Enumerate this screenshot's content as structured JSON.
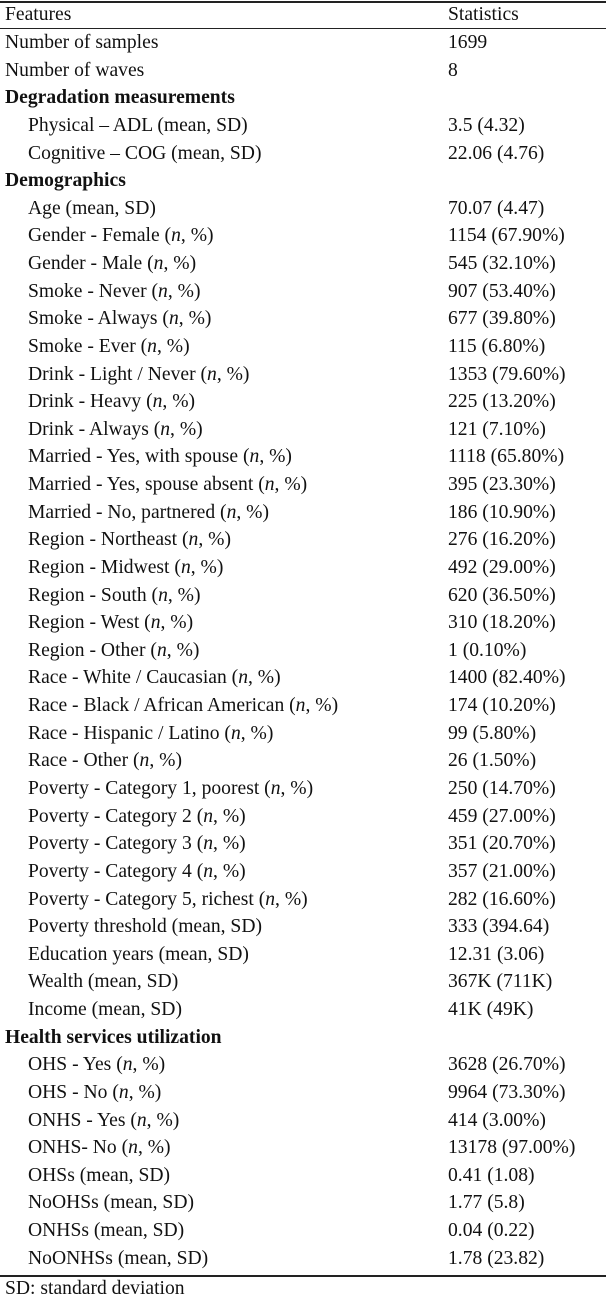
{
  "header": {
    "features": "Features",
    "statistics": "Statistics"
  },
  "rows": [
    {
      "type": "plain",
      "label": "Number of samples",
      "stat": "1699"
    },
    {
      "type": "plain",
      "label": "Number of waves",
      "stat": "8"
    },
    {
      "type": "section",
      "label": "Degradation measurements",
      "stat": ""
    },
    {
      "type": "sub",
      "label": "Physical – ADL (mean, SD)",
      "stat": "3.5 (4.32)"
    },
    {
      "type": "sub",
      "label": "Cognitive – COG (mean, SD)",
      "stat": "22.06 (4.76)"
    },
    {
      "type": "section",
      "label": "Demographics",
      "stat": ""
    },
    {
      "type": "sub",
      "label": "Age (mean, SD)",
      "stat": "70.07 (4.47)"
    },
    {
      "type": "sub",
      "label": "Gender - Female (n, %)",
      "stat": "1154 (67.90%)"
    },
    {
      "type": "sub",
      "label": "Gender - Male (n, %)",
      "stat": "545 (32.10%)"
    },
    {
      "type": "sub",
      "label": "Smoke - Never (n, %)",
      "stat": "907 (53.40%)"
    },
    {
      "type": "sub",
      "label": "Smoke - Always (n, %)",
      "stat": "677 (39.80%)"
    },
    {
      "type": "sub",
      "label": "Smoke - Ever (n, %)",
      "stat": "115 (6.80%)"
    },
    {
      "type": "sub",
      "label": "Drink - Light / Never (n, %)",
      "stat": "1353 (79.60%)"
    },
    {
      "type": "sub",
      "label": "Drink - Heavy (n, %)",
      "stat": "225 (13.20%)"
    },
    {
      "type": "sub",
      "label": "Drink - Always (n, %)",
      "stat": "121 (7.10%)"
    },
    {
      "type": "sub",
      "label": "Married - Yes, with spouse (n, %)",
      "stat": "1118 (65.80%)"
    },
    {
      "type": "sub",
      "label": "Married - Yes, spouse absent (n, %)",
      "stat": "395 (23.30%)"
    },
    {
      "type": "sub",
      "label": "Married - No, partnered (n, %)",
      "stat": "186 (10.90%)"
    },
    {
      "type": "sub",
      "label": "Region - Northeast (n, %)",
      "stat": "276 (16.20%)"
    },
    {
      "type": "sub",
      "label": "Region - Midwest (n, %)",
      "stat": "492 (29.00%)"
    },
    {
      "type": "sub",
      "label": "Region - South (n, %)",
      "stat": "620 (36.50%)"
    },
    {
      "type": "sub",
      "label": "Region - West (n, %)",
      "stat": "310 (18.20%)"
    },
    {
      "type": "sub",
      "label": "Region - Other (n, %)",
      "stat": "1 (0.10%)"
    },
    {
      "type": "sub",
      "label": "Race - White / Caucasian (n, %)",
      "stat": "1400 (82.40%)"
    },
    {
      "type": "sub",
      "label": "Race - Black / African American (n, %)",
      "stat": "174 (10.20%)"
    },
    {
      "type": "sub",
      "label": "Race - Hispanic / Latino (n, %)",
      "stat": "99 (5.80%)"
    },
    {
      "type": "sub",
      "label": "Race - Other (n, %)",
      "stat": "26 (1.50%)"
    },
    {
      "type": "sub",
      "label": "Poverty - Category 1, poorest (n, %)",
      "stat": "250 (14.70%)"
    },
    {
      "type": "sub",
      "label": "Poverty - Category 2 (n, %)",
      "stat": "459 (27.00%)"
    },
    {
      "type": "sub",
      "label": "Poverty - Category 3 (n, %)",
      "stat": "351 (20.70%)"
    },
    {
      "type": "sub",
      "label": "Poverty - Category 4 (n, %)",
      "stat": "357 (21.00%)"
    },
    {
      "type": "sub",
      "label": "Poverty - Category 5, richest (n, %)",
      "stat": "282 (16.60%)"
    },
    {
      "type": "sub",
      "label": "Poverty threshold (mean, SD)",
      "stat": "333 (394.64)"
    },
    {
      "type": "sub",
      "label": "Education years (mean, SD)",
      "stat": "12.31 (3.06)"
    },
    {
      "type": "sub",
      "label": "Wealth (mean, SD)",
      "stat": "367K (711K)"
    },
    {
      "type": "sub",
      "label": "Income (mean, SD)",
      "stat": "41K (49K)"
    },
    {
      "type": "section",
      "label": "Health services utilization",
      "stat": ""
    },
    {
      "type": "sub",
      "label": "OHS - Yes (n, %)",
      "stat": "3628 (26.70%)"
    },
    {
      "type": "sub",
      "label": "OHS - No (n, %)",
      "stat": "9964 (73.30%)"
    },
    {
      "type": "sub",
      "label": "ONHS - Yes (n, %)",
      "stat": "414 (3.00%)"
    },
    {
      "type": "sub",
      "label": "ONHS- No (n, %)",
      "stat": "13178 (97.00%)"
    },
    {
      "type": "sub",
      "label": "OHSs (mean, SD)",
      "stat": "0.41 (1.08)"
    },
    {
      "type": "sub",
      "label": "NoOHSs (mean, SD)",
      "stat": "1.77 (5.8)"
    },
    {
      "type": "sub",
      "label": "ONHSs (mean, SD)",
      "stat": "0.04 (0.22)"
    },
    {
      "type": "sub",
      "label": "NoONHSs (mean, SD)",
      "stat": "1.78 (23.82)"
    }
  ],
  "footnote": "SD: standard deviation"
}
